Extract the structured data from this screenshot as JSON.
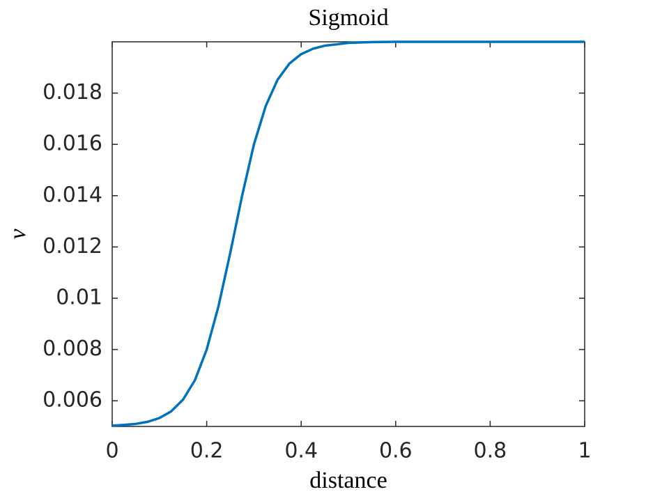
{
  "chart_data": {
    "type": "line",
    "title": "Sigmoid",
    "x_label": "distance",
    "y_label": "ν",
    "x": [
      0,
      0.025,
      0.05,
      0.075,
      0.1,
      0.125,
      0.15,
      0.175,
      0.2,
      0.225,
      0.25,
      0.275,
      0.3,
      0.325,
      0.35,
      0.375,
      0.4,
      0.425,
      0.45,
      0.475,
      0.5,
      0.55,
      0.6,
      0.7,
      0.8,
      0.9,
      1
    ],
    "series": [
      {
        "color": "#0072bd",
        "values": [
          0.00503,
          0.00506,
          0.0051,
          0.00518,
          0.00533,
          0.00559,
          0.00605,
          0.0068,
          0.008,
          0.00969,
          0.01178,
          0.014,
          0.016,
          0.0175,
          0.01852,
          0.01915,
          0.01952,
          0.01973,
          0.01985,
          0.0199,
          0.01996,
          0.01999,
          0.02,
          0.02,
          0.02,
          0.02,
          0.02
        ]
      }
    ],
    "xlim": [
      0,
      1
    ],
    "xticks": [
      0,
      0.2,
      0.4,
      0.6,
      0.8,
      1
    ],
    "ylim": [
      0.005,
      0.02
    ],
    "yticks": [
      0.006,
      0.008,
      0.01,
      0.012,
      0.014,
      0.016,
      0.018
    ],
    "grid": false
  }
}
